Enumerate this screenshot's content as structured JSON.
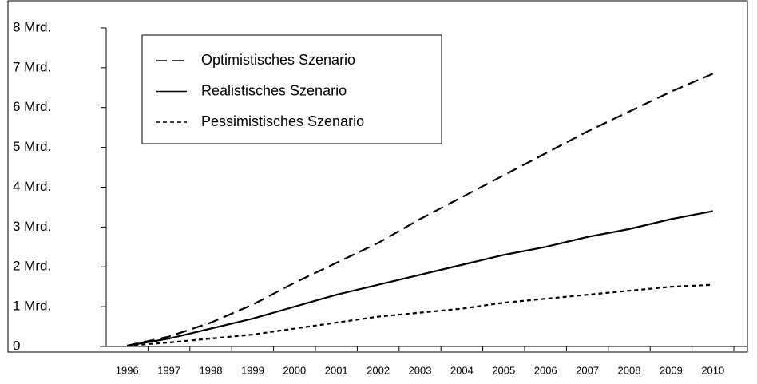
{
  "chart_data": {
    "type": "line",
    "categories": [
      "1996",
      "1997",
      "1998",
      "1999",
      "2000",
      "2001",
      "2002",
      "2003",
      "2004",
      "2005",
      "2006",
      "2007",
      "2008",
      "2009",
      "2010"
    ],
    "series": [
      {
        "name": "Optimistisches Szenario",
        "color": "#000000",
        "dash": "14,7",
        "values": [
          0.02,
          0.25,
          0.6,
          1.05,
          1.6,
          2.1,
          2.6,
          3.2,
          3.75,
          4.3,
          4.85,
          5.4,
          5.9,
          6.4,
          6.85
        ]
      },
      {
        "name": "Realistisches Szenario",
        "color": "#000000",
        "dash": "none",
        "values": [
          0.02,
          0.2,
          0.45,
          0.7,
          1.0,
          1.3,
          1.55,
          1.8,
          2.05,
          2.3,
          2.5,
          2.75,
          2.95,
          3.2,
          3.4
        ]
      },
      {
        "name": "Pessimistisches Szenario",
        "color": "#000000",
        "dash": "5,4",
        "values": [
          0.02,
          0.1,
          0.2,
          0.3,
          0.45,
          0.6,
          0.75,
          0.85,
          0.95,
          1.1,
          1.2,
          1.3,
          1.4,
          1.5,
          1.55
        ]
      }
    ],
    "ylim": [
      0,
      8
    ],
    "yticks": [
      0,
      {
        "value": 1,
        "label": "1 Mrd."
      },
      {
        "value": 2,
        "label": "2 Mrd."
      },
      {
        "value": 3,
        "label": "3 Mrd."
      },
      {
        "value": 4,
        "label": "4 Mrd."
      },
      {
        "value": 5,
        "label": "5 Mrd."
      },
      {
        "value": 6,
        "label": "6 Mrd."
      },
      {
        "value": 7,
        "label": "7 Mrd."
      },
      {
        "value": 8,
        "label": "8 Mrd."
      }
    ],
    "grid": false,
    "legend": "top-left"
  }
}
